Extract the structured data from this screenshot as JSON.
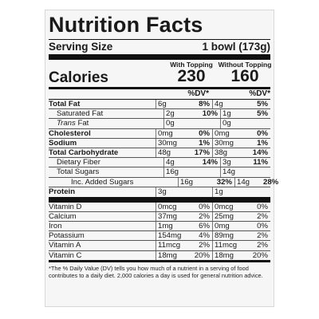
{
  "title": "Nutrition Facts",
  "serving": {
    "label": "Serving Size",
    "value": "1 bowl (173g)"
  },
  "calories": {
    "label": "Calories",
    "col1_head": "With Topping",
    "col1_value": "230",
    "col2_head": "Without Topping",
    "col2_value": "160"
  },
  "dv_head": {
    "col1": "%DV*",
    "col2": "%DV*"
  },
  "nutrients": [
    {
      "name": "Total Fat",
      "a1": "6g",
      "p1": "8%",
      "a2": "4g",
      "p2": "5%"
    },
    {
      "name": "Saturated Fat",
      "a1": "2g",
      "p1": "10%",
      "a2": "1g",
      "p2": "5%"
    },
    {
      "name": "Trans",
      "name_suffix": " Fat",
      "a1": "0g",
      "p1": "",
      "a2": "0g",
      "p2": ""
    },
    {
      "name": "Cholesterol",
      "a1": "0mg",
      "p1": "0%",
      "a2": "0mg",
      "p2": "0%"
    },
    {
      "name": "Sodium",
      "a1": "30mg",
      "p1": "1%",
      "a2": "30mg",
      "p2": "1%"
    },
    {
      "name": "Total Carbohydrate",
      "a1": "48g",
      "p1": "17%",
      "a2": "38g",
      "p2": "14%"
    },
    {
      "name": "Dietary Fiber",
      "a1": "4g",
      "p1": "14%",
      "a2": "3g",
      "p2": "11%"
    },
    {
      "name": "Total Sugars",
      "a1": "16g",
      "p1": "",
      "a2": "14g",
      "p2": ""
    },
    {
      "name": "Inc. Added Sugars",
      "a1": "16g",
      "p1": "32%",
      "a2": "14g",
      "p2": "28%"
    }
  ],
  "protein": {
    "name": "Protein",
    "a1": "3g",
    "a2": "1g"
  },
  "vitamins": [
    {
      "name": "Vitamin D",
      "a1": "0mcg",
      "p1": "0%",
      "a2": "0mcg",
      "p2": "0%"
    },
    {
      "name": "Calcium",
      "a1": "37mg",
      "p1": "2%",
      "a2": "25mg",
      "p2": "2%"
    },
    {
      "name": "Iron",
      "a1": "1mg",
      "p1": "6%",
      "a2": "0mg",
      "p2": "0%"
    },
    {
      "name": "Potassium",
      "a1": "154mg",
      "p1": "4%",
      "a2": "89mg",
      "p2": "2%"
    },
    {
      "name": "Vitamin A",
      "a1": "11mcg",
      "p1": "2%",
      "a2": "11mcg",
      "p2": "2%"
    },
    {
      "name": "Vitamin C",
      "a1": "18mg",
      "p1": "20%",
      "a2": "18mg",
      "p2": "20%"
    }
  ],
  "footnote": "*The % Daily Value (DV) tells you how much of a nutrient in a serving of food contributes to a daily diet. 2,000 calories a day is used for general nutrition advice."
}
